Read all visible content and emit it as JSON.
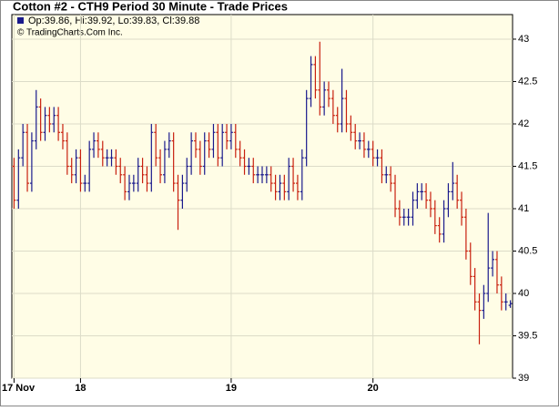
{
  "chart_data": {
    "type": "ohlc",
    "title": "Cotton #2 - CTH9 Period 30 Minute - Trade Prices",
    "legend_text": "Op:39.86, Hi:39.92, Lo:39.83, Cl:39.88",
    "copyright": "© TradingCharts.Com Inc.",
    "up_color": "#1a1a8c",
    "down_color": "#c8200f",
    "grid": true,
    "xlim": [
      -0.5,
      112.5
    ],
    "xticks": [
      {
        "value": 0,
        "label": "17 Nov"
      },
      {
        "value": 15,
        "label": "18"
      },
      {
        "value": 49,
        "label": "19"
      },
      {
        "value": 81,
        "label": "20"
      }
    ],
    "ylim": [
      39,
      43.29
    ],
    "yticks": [
      39,
      39.5,
      40,
      40.5,
      41,
      41.5,
      42,
      42.5,
      43
    ],
    "open": [
      41.5,
      41.1,
      41.6,
      41.9,
      41.3,
      41.8,
      42.2,
      41.9,
      42.1,
      42.0,
      42.1,
      41.9,
      41.8,
      41.5,
      41.4,
      41.6,
      41.3,
      41.3,
      41.7,
      41.8,
      41.7,
      41.6,
      41.6,
      41.6,
      41.5,
      41.4,
      41.2,
      41.3,
      41.3,
      41.5,
      41.4,
      41.3,
      41.9,
      41.6,
      41.4,
      41.7,
      41.8,
      41.3,
      41.1,
      41.3,
      41.5,
      41.8,
      41.7,
      41.5,
      41.8,
      41.7,
      41.9,
      41.6,
      41.9,
      41.8,
      41.9,
      41.7,
      41.6,
      41.5,
      41.5,
      41.4,
      41.4,
      41.4,
      41.4,
      41.3,
      41.2,
      41.3,
      41.2,
      41.5,
      41.3,
      41.2,
      41.6,
      42.3,
      42.7,
      42.4,
      42.2,
      42.4,
      42.3,
      42.1,
      42.0,
      42.3,
      42.0,
      41.9,
      41.8,
      41.8,
      41.7,
      41.7,
      41.6,
      41.6,
      41.4,
      41.4,
      41.3,
      41.0,
      40.9,
      40.9,
      40.9,
      41.1,
      41.2,
      41.2,
      41.1,
      41.0,
      40.8,
      40.7,
      41.0,
      41.2,
      41.3,
      41.1,
      40.9,
      40.5,
      40.2,
      39.9,
      39.8,
      40.0,
      40.3,
      40.4,
      40.1,
      39.9,
      39.86
    ],
    "high": [
      41.6,
      41.7,
      42.0,
      42.0,
      41.9,
      42.4,
      42.3,
      42.2,
      42.2,
      42.2,
      42.2,
      42.0,
      41.9,
      41.6,
      41.7,
      41.7,
      41.4,
      41.8,
      41.9,
      41.9,
      41.8,
      41.7,
      41.7,
      41.7,
      41.6,
      41.5,
      41.4,
      41.4,
      41.6,
      41.6,
      41.5,
      42.0,
      42.0,
      41.7,
      41.8,
      41.9,
      41.9,
      41.4,
      41.4,
      41.6,
      41.9,
      41.9,
      41.8,
      41.9,
      41.9,
      42.0,
      42.0,
      42.0,
      42.0,
      42.0,
      42.0,
      41.8,
      41.7,
      41.6,
      41.6,
      41.5,
      41.5,
      41.5,
      41.5,
      41.4,
      41.4,
      41.4,
      41.6,
      41.6,
      41.4,
      41.7,
      42.4,
      42.8,
      42.8,
      42.97,
      42.5,
      42.5,
      42.4,
      42.2,
      42.65,
      42.4,
      42.1,
      42.0,
      41.9,
      41.9,
      41.8,
      41.8,
      41.7,
      41.7,
      41.5,
      41.5,
      41.4,
      41.1,
      41.0,
      41.0,
      41.2,
      41.3,
      41.3,
      41.3,
      41.2,
      41.1,
      40.9,
      41.1,
      41.3,
      41.55,
      41.4,
      41.2,
      41.0,
      40.6,
      40.3,
      40.0,
      40.1,
      40.95,
      40.5,
      40.5,
      40.2,
      40.0,
      39.92
    ],
    "low": [
      41.0,
      41.0,
      41.5,
      41.2,
      41.2,
      41.7,
      41.8,
      41.8,
      41.9,
      41.9,
      41.8,
      41.7,
      41.4,
      41.3,
      41.3,
      41.2,
      41.2,
      41.2,
      41.6,
      41.6,
      41.5,
      41.5,
      41.5,
      41.4,
      41.3,
      41.1,
      41.1,
      41.2,
      41.2,
      41.3,
      41.2,
      41.2,
      41.5,
      41.3,
      41.3,
      41.6,
      41.2,
      40.75,
      41.0,
      41.2,
      41.4,
      41.6,
      41.4,
      41.4,
      41.6,
      41.6,
      41.5,
      41.5,
      41.7,
      41.7,
      41.6,
      41.5,
      41.4,
      41.4,
      41.3,
      41.3,
      41.3,
      41.3,
      41.2,
      41.1,
      41.1,
      41.1,
      41.1,
      41.2,
      41.1,
      41.1,
      41.5,
      42.2,
      42.3,
      42.1,
      42.1,
      42.2,
      42.0,
      41.9,
      41.9,
      41.9,
      41.8,
      41.7,
      41.7,
      41.6,
      41.6,
      41.5,
      41.5,
      41.3,
      41.3,
      41.2,
      40.9,
      40.8,
      40.8,
      40.8,
      40.8,
      41.0,
      41.1,
      41.0,
      40.9,
      40.7,
      40.6,
      40.6,
      40.9,
      41.1,
      41.0,
      40.8,
      40.4,
      40.1,
      39.8,
      39.4,
      39.7,
      39.9,
      40.2,
      40.0,
      39.8,
      39.8,
      39.83
    ],
    "close": [
      41.1,
      41.6,
      41.9,
      41.3,
      41.8,
      42.2,
      41.9,
      42.1,
      42.0,
      42.1,
      41.9,
      41.8,
      41.5,
      41.4,
      41.6,
      41.3,
      41.3,
      41.7,
      41.8,
      41.7,
      41.6,
      41.6,
      41.6,
      41.5,
      41.4,
      41.2,
      41.3,
      41.3,
      41.5,
      41.4,
      41.3,
      41.9,
      41.6,
      41.4,
      41.7,
      41.8,
      41.3,
      41.1,
      41.3,
      41.5,
      41.8,
      41.7,
      41.5,
      41.8,
      41.7,
      41.9,
      41.6,
      41.9,
      41.8,
      41.9,
      41.7,
      41.6,
      41.5,
      41.5,
      41.4,
      41.4,
      41.4,
      41.4,
      41.3,
      41.2,
      41.3,
      41.2,
      41.5,
      41.3,
      41.2,
      41.6,
      42.3,
      42.7,
      42.4,
      42.2,
      42.4,
      42.3,
      42.1,
      42.0,
      42.3,
      42.0,
      41.9,
      41.8,
      41.8,
      41.7,
      41.7,
      41.6,
      41.6,
      41.4,
      41.4,
      41.3,
      41.0,
      40.9,
      40.9,
      40.9,
      41.1,
      41.2,
      41.2,
      41.1,
      41.0,
      40.8,
      40.7,
      41.0,
      41.2,
      41.3,
      41.1,
      40.9,
      40.5,
      40.2,
      39.9,
      39.8,
      40.0,
      40.3,
      40.4,
      40.1,
      39.9,
      39.9,
      39.88
    ]
  }
}
